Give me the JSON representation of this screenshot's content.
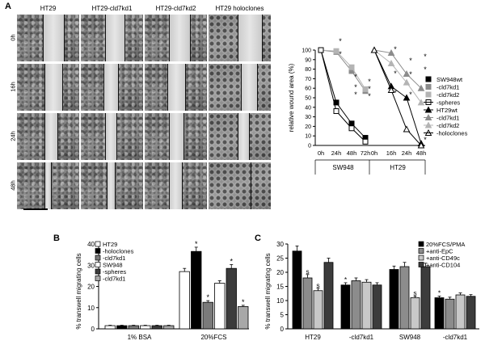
{
  "panels": {
    "A": "A",
    "B": "B",
    "C": "C"
  },
  "micrographs": {
    "columns": [
      "HT29",
      "HT29-cld7kd1",
      "HT29-cld7kd2",
      "HT29 holoclones"
    ],
    "rows": [
      "0h",
      "16h",
      "24h",
      "48h"
    ]
  },
  "chart_data": [
    {
      "type": "line",
      "ylabel": "relative wound area (%)",
      "ylim": [
        0,
        100
      ],
      "yticks": [
        0,
        10,
        20,
        30,
        40,
        50,
        60,
        70,
        80,
        90,
        100
      ],
      "groups": [
        {
          "name": "SW948",
          "x": [
            "0h",
            "24h",
            "48h",
            "72h"
          ]
        },
        {
          "name": "HT29",
          "x": [
            "0h",
            "16h",
            "24h",
            "48h"
          ]
        }
      ],
      "series": [
        {
          "name": "SW948wt",
          "group": "SW948",
          "marker": "square-filled",
          "color": "#000000",
          "values": [
            100,
            45,
            23,
            8
          ]
        },
        {
          "name": "-cld7kd1",
          "group": "SW948",
          "marker": "square-filled",
          "color": "#8c8c8c",
          "values": [
            100,
            98,
            78,
            57
          ]
        },
        {
          "name": "-cld7kd2",
          "group": "SW948",
          "marker": "square-filled",
          "color": "#b4b4b4",
          "values": [
            100,
            99,
            82,
            59
          ]
        },
        {
          "name": "-spheres",
          "group": "SW948",
          "marker": "square-open",
          "color": "#000000",
          "values": [
            100,
            36,
            18,
            4
          ]
        },
        {
          "name": "HT29wt",
          "group": "HT29",
          "marker": "triangle-filled",
          "color": "#000000",
          "values": [
            100,
            62,
            50,
            2
          ]
        },
        {
          "name": "-cld7kd1",
          "group": "HT29",
          "marker": "triangle-filled",
          "color": "#8c8c8c",
          "values": [
            100,
            97,
            75,
            60
          ]
        },
        {
          "name": "-cld7kd2",
          "group": "HT29",
          "marker": "triangle-filled",
          "color": "#b4b4b4",
          "values": [
            100,
            86,
            66,
            45
          ]
        },
        {
          "name": "-holoclones",
          "group": "HT29",
          "marker": "triangle-open",
          "color": "#000000",
          "values": [
            100,
            58,
            17,
            0
          ]
        }
      ],
      "significance": "*",
      "legend": "right"
    },
    {
      "type": "bar",
      "ylabel": "% transwell migrating cells",
      "ylim": [
        0,
        40
      ],
      "yticks": [
        0,
        10,
        20,
        30,
        40
      ],
      "categories": [
        "1% BSA",
        "20%FCS"
      ],
      "series": [
        {
          "name": "HT29",
          "color": "#ffffff",
          "values": [
            1.5,
            27
          ],
          "errors": [
            0.2,
            1.5
          ]
        },
        {
          "name": "-holoclones",
          "color": "#000000",
          "values": [
            1.5,
            36.5
          ],
          "errors": [
            0.2,
            2.0
          ]
        },
        {
          "name": "-cld7kd1",
          "color": "#7a7a7a",
          "values": [
            1.5,
            12.5
          ],
          "errors": [
            0.2,
            0.8
          ]
        },
        {
          "name": "SW948",
          "color": "#ffffff",
          "values": [
            1.5,
            21.5
          ],
          "errors": [
            0.2,
            1.2
          ]
        },
        {
          "name": "-spheres",
          "color": "#3c3c3c",
          "values": [
            1.5,
            28.5
          ],
          "errors": [
            0.2,
            1.8
          ]
        },
        {
          "name": "-cld7kd1",
          "color": "#a8a8a8",
          "values": [
            1.5,
            10.5
          ],
          "errors": [
            0.2,
            0.6
          ]
        }
      ],
      "significance": "*",
      "legend": "top-left"
    },
    {
      "type": "bar",
      "ylabel": "% transwell migrating cells",
      "ylim": [
        0,
        30
      ],
      "yticks": [
        0,
        5,
        10,
        15,
        20,
        25,
        30
      ],
      "categories": [
        "HT29",
        "-cld7kd1",
        "SW948",
        "-cld7kd1"
      ],
      "series": [
        {
          "name": "20%FCS/PMA",
          "color": "#000000",
          "values": [
            27.5,
            15.5,
            21,
            11
          ],
          "errors": [
            1.8,
            0.8,
            1.2,
            0.6
          ]
        },
        {
          "name": "+anti-EpC",
          "color": "#8c8c8c",
          "values": [
            18,
            17,
            22,
            10.5
          ],
          "errors": [
            1.2,
            1.0,
            1.5,
            0.7
          ]
        },
        {
          "name": "+anti-CD49c",
          "color": "#c8c8c8",
          "values": [
            13.5,
            16.5,
            11,
            12
          ],
          "errors": [
            0.8,
            0.9,
            0.6,
            0.7
          ]
        },
        {
          "name": "+anti-CD104",
          "color": "#3c3c3c",
          "values": [
            23.5,
            15.5,
            22,
            11.5
          ],
          "errors": [
            1.5,
            0.8,
            1.2,
            0.6
          ]
        }
      ],
      "significance": [
        "*",
        "s"
      ],
      "legend": "top-right"
    }
  ]
}
